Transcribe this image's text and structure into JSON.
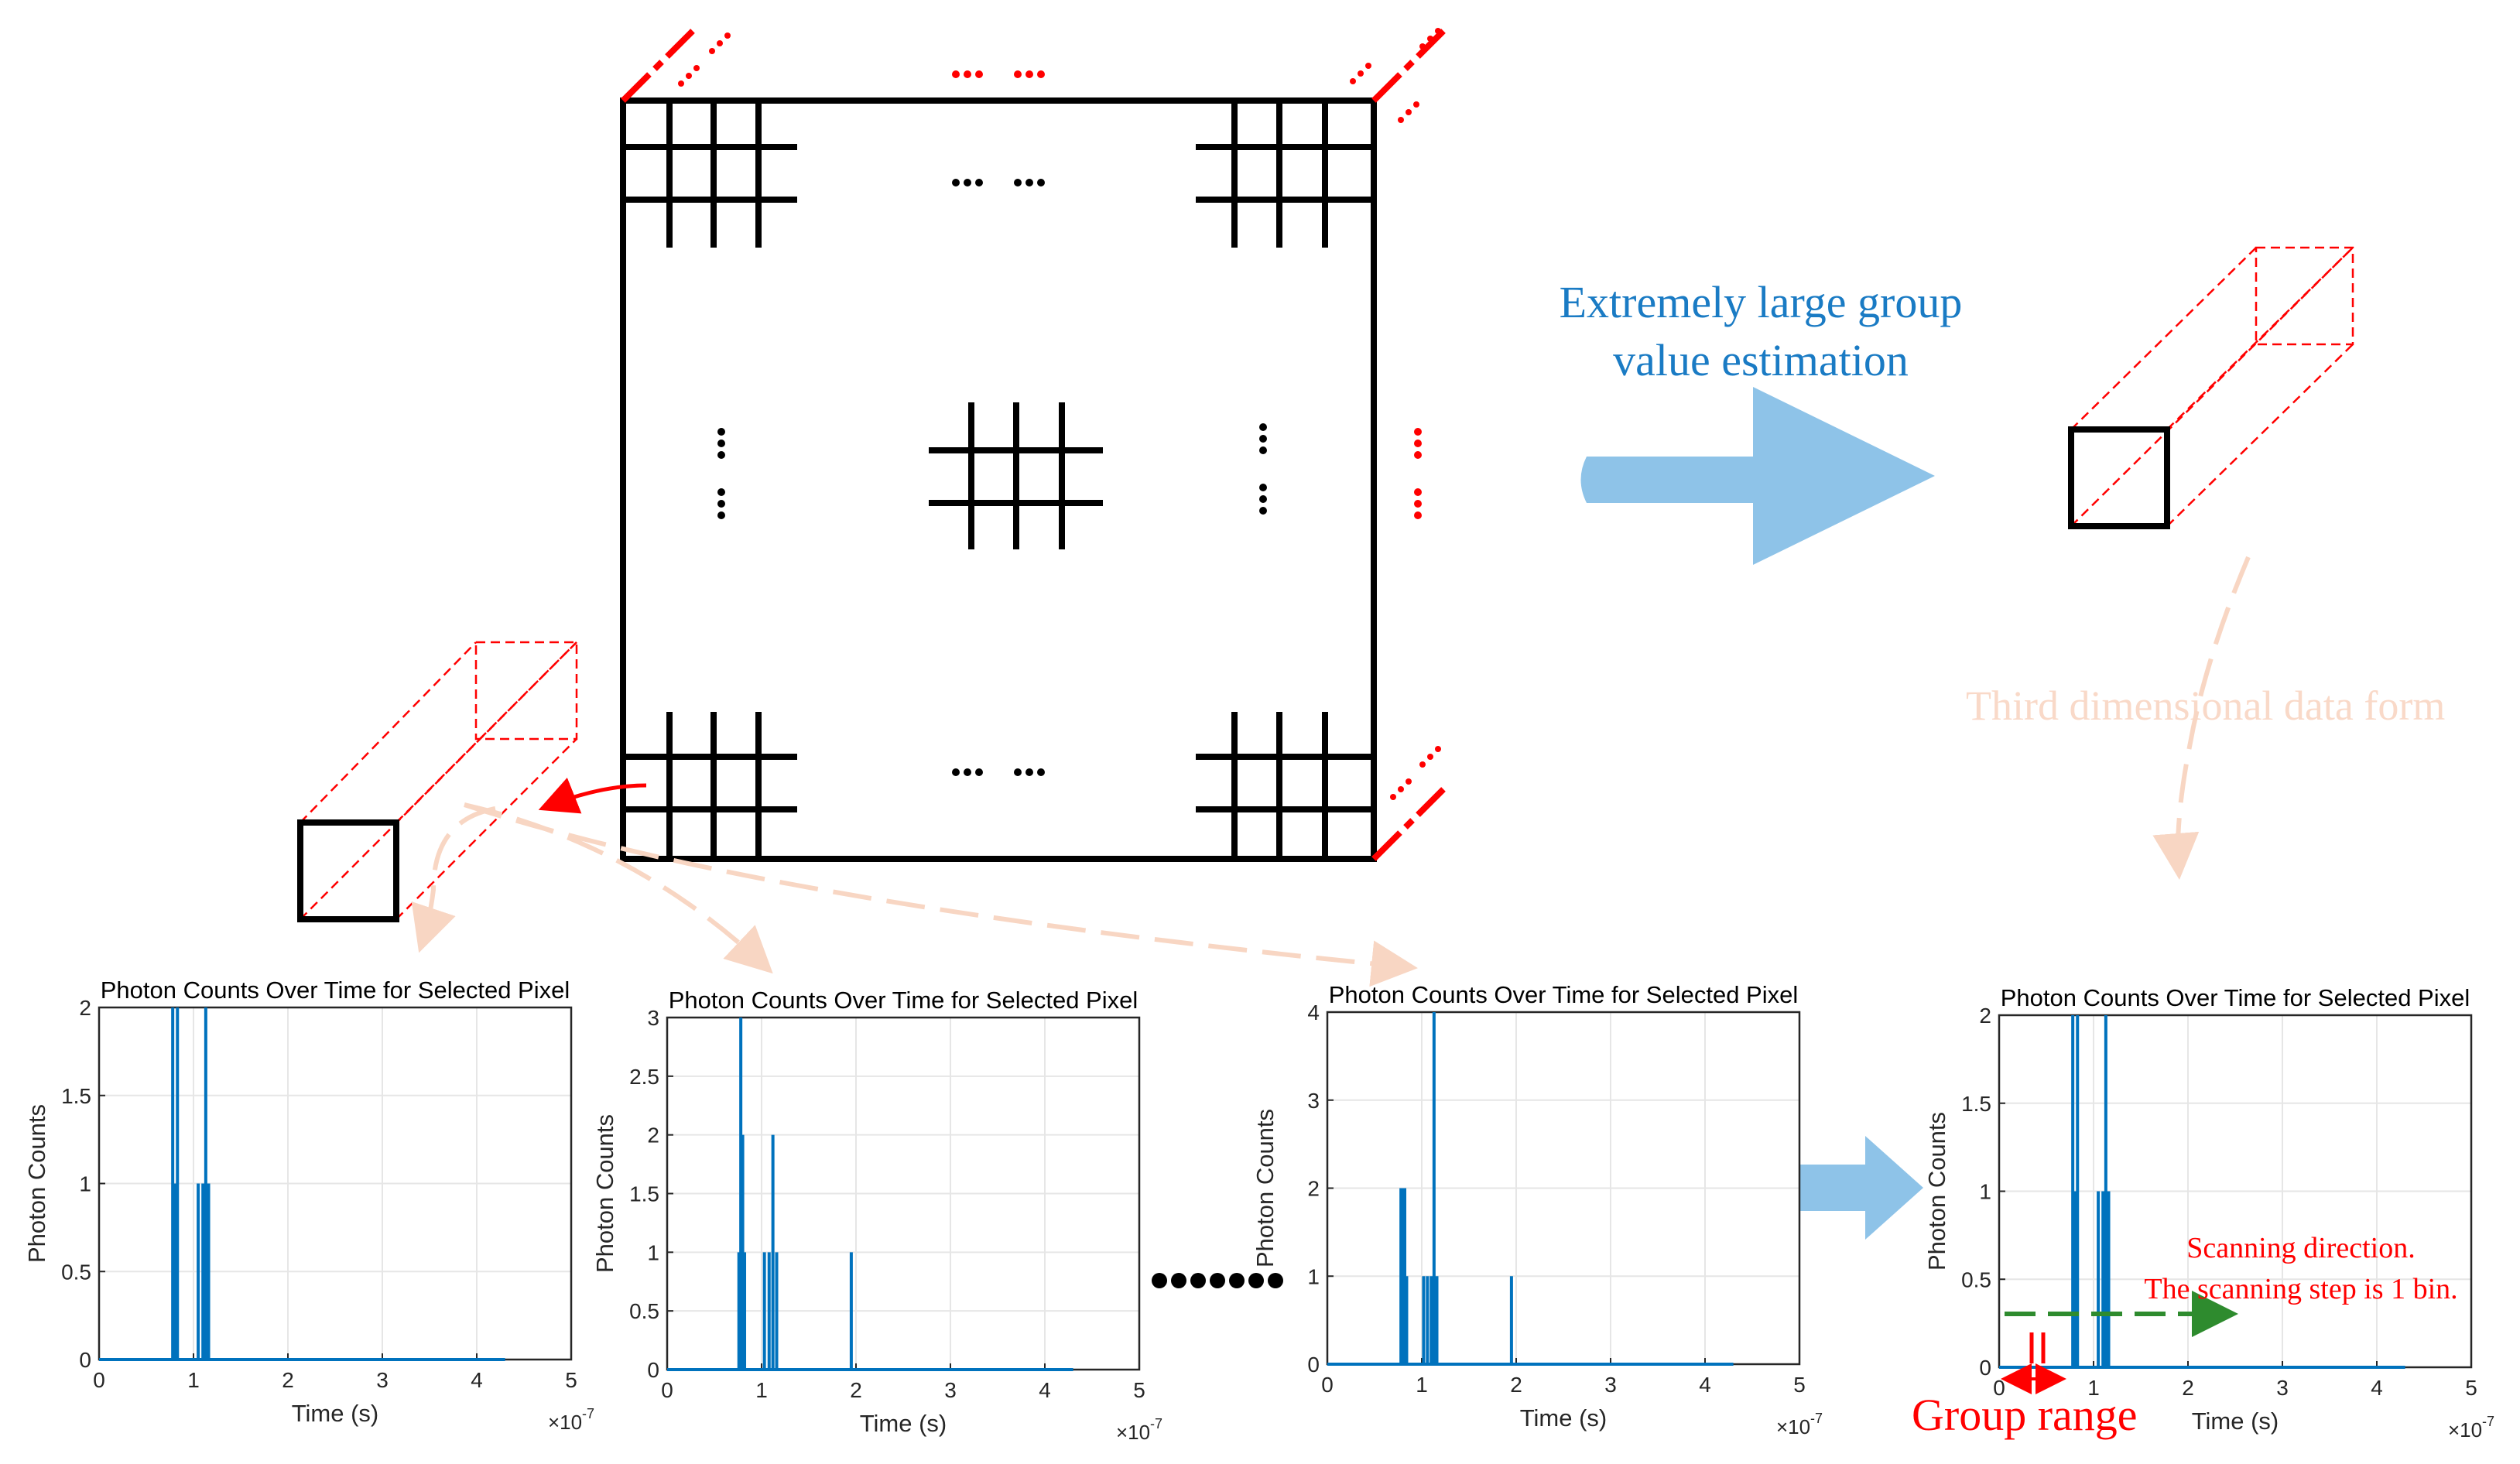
{
  "diagram": {
    "arrow_label_line1": "Extremely large group",
    "arrow_label_line2": "value estimation",
    "third_dim_label": "Third dimensional data form",
    "scan_label_line1": "Scanning direction.",
    "scan_label_line2": "The scanning step is 1 bin.",
    "group_range_label": "Group range",
    "colors": {
      "grid": "#000000",
      "red_accent": "#ff0000",
      "big_arrow": "#8ec3e8",
      "arrow_label": "#1a7bc4",
      "faint_label": "#f9d9c8",
      "faint_arrow": "#f8d6c3",
      "scan_arrow": "#2e8b2e",
      "plot_line": "#0072bd"
    }
  },
  "chart_data": [
    {
      "type": "line",
      "title": "Photon Counts Over Time for Selected Pixel",
      "xlabel": "Time (s)",
      "ylabel": "Photon Counts",
      "x_exponent_label": "×10",
      "x_exponent_power": "-7",
      "xlim": [
        0,
        5
      ],
      "ylim": [
        0,
        2
      ],
      "xticks": [
        "0",
        "1",
        "2",
        "3",
        "4",
        "5"
      ],
      "yticks": [
        "0",
        "0.5",
        "1",
        "1.5",
        "2"
      ],
      "ytick_values": [
        0,
        0.5,
        1,
        1.5,
        2
      ],
      "baseline_end": 4.3,
      "spikes": [
        [
          0.78,
          2
        ],
        [
          0.8,
          1
        ],
        [
          0.83,
          2
        ],
        [
          1.05,
          1
        ],
        [
          1.1,
          1
        ],
        [
          1.13,
          2
        ],
        [
          1.16,
          1
        ]
      ]
    },
    {
      "type": "line",
      "title": "Photon Counts Over Time for Selected Pixel",
      "xlabel": "Time (s)",
      "ylabel": "Photon Counts",
      "x_exponent_label": "×10",
      "x_exponent_power": "-7",
      "xlim": [
        0,
        5
      ],
      "ylim": [
        0,
        3
      ],
      "xticks": [
        "0",
        "1",
        "2",
        "3",
        "4",
        "5"
      ],
      "yticks": [
        "0",
        "0.5",
        "1",
        "1.5",
        "2",
        "2.5",
        "3"
      ],
      "ytick_values": [
        0,
        0.5,
        1,
        1.5,
        2,
        2.5,
        3
      ],
      "baseline_end": 4.3,
      "spikes": [
        [
          0.76,
          1
        ],
        [
          0.78,
          3
        ],
        [
          0.8,
          2
        ],
        [
          0.82,
          1
        ],
        [
          1.03,
          1
        ],
        [
          1.08,
          1
        ],
        [
          1.12,
          2
        ],
        [
          1.16,
          1
        ],
        [
          1.95,
          1
        ]
      ]
    },
    {
      "type": "line",
      "title": "Photon Counts Over Time for Selected Pixel",
      "xlabel": "Time (s)",
      "ylabel": "Photon Counts",
      "x_exponent_label": "×10",
      "x_exponent_power": "-7",
      "xlim": [
        0,
        5
      ],
      "ylim": [
        0,
        4
      ],
      "xticks": [
        "0",
        "1",
        "2",
        "3",
        "4",
        "5"
      ],
      "yticks": [
        "0",
        "1",
        "2",
        "3",
        "4"
      ],
      "ytick_values": [
        0,
        1,
        2,
        3,
        4
      ],
      "baseline_end": 4.3,
      "spikes": [
        [
          0.78,
          2
        ],
        [
          0.8,
          2
        ],
        [
          0.82,
          2
        ],
        [
          0.84,
          1
        ],
        [
          1.02,
          1
        ],
        [
          1.06,
          1
        ],
        [
          1.1,
          1
        ],
        [
          1.13,
          4
        ],
        [
          1.16,
          1
        ],
        [
          1.95,
          1
        ]
      ]
    },
    {
      "type": "line",
      "title": "Photon Counts Over Time for Selected Pixel",
      "xlabel": "Time (s)",
      "ylabel": "Photon Counts",
      "x_exponent_label": "×10",
      "x_exponent_power": "-7",
      "xlim": [
        0,
        5
      ],
      "ylim": [
        0,
        2
      ],
      "xticks": [
        "0",
        "1",
        "2",
        "3",
        "4",
        "5"
      ],
      "yticks": [
        "0",
        "0.5",
        "1",
        "1.5",
        "2"
      ],
      "ytick_values": [
        0,
        0.5,
        1,
        1.5,
        2
      ],
      "baseline_end": 4.3,
      "spikes": [
        [
          0.78,
          2
        ],
        [
          0.8,
          1
        ],
        [
          0.83,
          2
        ],
        [
          1.05,
          1
        ],
        [
          1.1,
          1
        ],
        [
          1.13,
          2
        ],
        [
          1.16,
          1
        ]
      ]
    }
  ]
}
